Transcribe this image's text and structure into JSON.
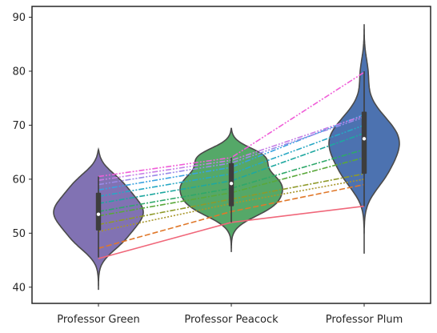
{
  "chart_data": {
    "type": "violin",
    "categories": [
      "Professor Green",
      "Professor Peacock",
      "Professor Plum"
    ],
    "ylim": [
      37,
      92
    ],
    "yticks": [
      40,
      50,
      60,
      70,
      80,
      90
    ],
    "violin_colors": [
      "#8172b3",
      "#55a868",
      "#4c72b0"
    ],
    "grid": false,
    "violins": [
      {
        "category": "Professor Green",
        "kde_range": [
          39.5,
          65.5
        ],
        "mode": 54,
        "median": 53.5,
        "q1": 50.5,
        "q3": 57.5,
        "whisker_low": 45.5,
        "whisker_high": 60.5
      },
      {
        "category": "Professor Peacock",
        "kde_range": [
          46.5,
          69.5
        ],
        "mode": 59,
        "median": 59.2,
        "q1": 55,
        "q3": 63,
        "whisker_low": 52,
        "whisker_high": 64
      },
      {
        "category": "Professor Plum",
        "kde_range": [
          46.2,
          88.7
        ],
        "mode": 67,
        "median": 67.5,
        "q1": 61,
        "q3": 72.5,
        "whisker_low": 55,
        "whisker_high": 80
      }
    ],
    "student_lines": [
      {
        "color": "#f0677a",
        "dash": "solid",
        "values": [
          45.3,
          52.0,
          55.0
        ]
      },
      {
        "color": "#e0782a",
        "dash": "dashed",
        "values": [
          47.2,
          54.0,
          59.0
        ]
      },
      {
        "color": "#a8962a",
        "dash": "dotted",
        "values": [
          50.3,
          55.5,
          60.0
        ]
      },
      {
        "color": "#8f9a2a",
        "dash": "dashdot",
        "values": [
          51.6,
          56.3,
          61.0
        ]
      },
      {
        "color": "#5aa83a",
        "dash": "dashdot",
        "values": [
          53.2,
          57.5,
          64.0
        ]
      },
      {
        "color": "#2fa86a",
        "dash": "dashdot",
        "values": [
          54.0,
          58.3,
          65.5
        ]
      },
      {
        "color": "#1fa8a0",
        "dash": "dashdot",
        "values": [
          55.5,
          59.7,
          68.5
        ]
      },
      {
        "color": "#28a8c4",
        "dash": "dashdotdot",
        "values": [
          56.8,
          61.0,
          70.0
        ]
      },
      {
        "color": "#3aa2e0",
        "dash": "dashdotdot",
        "values": [
          58.0,
          62.2,
          72.0
        ]
      },
      {
        "color": "#9a8ae8",
        "dash": "dashdotdot",
        "values": [
          59.0,
          63.0,
          71.5
        ]
      },
      {
        "color": "#c77ee6",
        "dash": "dashdotdot",
        "values": [
          59.8,
          63.5,
          71.8
        ]
      },
      {
        "color": "#f05ed8",
        "dash": "dashdotdot",
        "values": [
          60.5,
          64.0,
          79.8
        ]
      }
    ]
  }
}
